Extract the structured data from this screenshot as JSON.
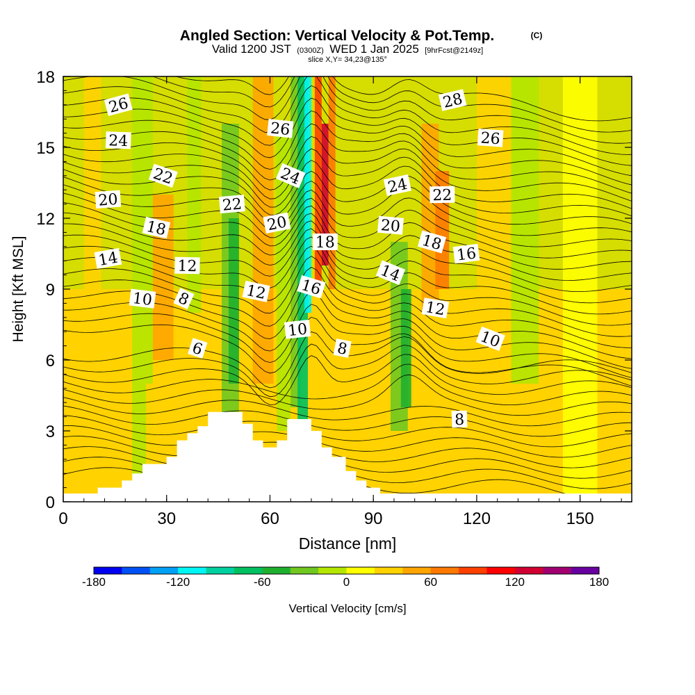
{
  "chart_data": {
    "type": "heatmap",
    "title": "Angled Section: Vertical Velocity & Pot.Temp.",
    "title_suffix": "(C)",
    "subtitle_parts": [
      "Valid 1200 JST",
      "(0300Z)",
      "WED 1 Jan 2025",
      "[9hrFcst@2149z]"
    ],
    "slice_label": "slice X,Y= 34,23@135°",
    "xlabel": "Distance [nm]",
    "ylabel": "Height [Kft MSL]",
    "xlim": [
      0,
      165
    ],
    "ylim": [
      0,
      18
    ],
    "x_ticks": [
      "0",
      "30",
      "60",
      "90",
      "120",
      "150"
    ],
    "y_ticks": [
      "0",
      "3",
      "6",
      "9",
      "12",
      "15",
      "18"
    ],
    "colorbar": {
      "label": "Vertical Velocity [cm/s]",
      "range": [
        -180,
        180
      ],
      "tick_labels": [
        "-180",
        "-120",
        "-60",
        "0",
        "60",
        "120",
        "180"
      ],
      "colors": [
        "#0000f0",
        "#0050f5",
        "#00a0f5",
        "#00f5f5",
        "#00d0a0",
        "#00c060",
        "#20b030",
        "#70c820",
        "#b4e600",
        "#ffff00",
        "#ffd200",
        "#ffa500",
        "#ff7800",
        "#ff4000",
        "#ff0000",
        "#d00030",
        "#a00070",
        "#6800a0"
      ]
    },
    "vertical_velocity_columns": [
      {
        "x": 6,
        "width": 5,
        "z0": 3,
        "z1": 18,
        "value": 20
      },
      {
        "x": 20,
        "width": 6,
        "z0": 0,
        "z1": 18,
        "value": -20
      },
      {
        "x": 26,
        "width": 6,
        "z0": 6,
        "z1": 13,
        "value": 40
      },
      {
        "x": 24,
        "width": 5,
        "z0": 0,
        "z1": 5,
        "value": 20
      },
      {
        "x": 36,
        "width": 4,
        "z0": 8,
        "z1": 18,
        "value": -20
      },
      {
        "x": 46,
        "width": 5,
        "z0": 3.5,
        "z1": 16,
        "value": -40
      },
      {
        "x": 48,
        "width": 3,
        "z0": 5,
        "z1": 12,
        "value": -60
      },
      {
        "x": 55,
        "width": 6,
        "z0": 5,
        "z1": 18,
        "value": 40
      },
      {
        "x": 62,
        "width": 4,
        "z0": 3,
        "z1": 16,
        "value": -20
      },
      {
        "x": 66,
        "width": 3,
        "z0": 4,
        "z1": 18,
        "value": -40
      },
      {
        "x": 68,
        "width": 3,
        "z0": 3.3,
        "z1": 18,
        "value": -80
      },
      {
        "x": 70,
        "width": 2,
        "z0": 8,
        "z1": 18,
        "value": -120
      },
      {
        "x": 73,
        "width": 2,
        "z0": 9,
        "z1": 18,
        "value": 80
      },
      {
        "x": 75,
        "width": 2,
        "z0": 10,
        "z1": 16,
        "value": 120
      },
      {
        "x": 77,
        "width": 2,
        "z0": 9,
        "z1": 18,
        "value": 60
      },
      {
        "x": 95,
        "width": 5,
        "z0": 3,
        "z1": 11,
        "value": -40
      },
      {
        "x": 98,
        "width": 3,
        "z0": 4,
        "z1": 9,
        "value": -60
      },
      {
        "x": 104,
        "width": 5,
        "z0": 8,
        "z1": 16,
        "value": 40
      },
      {
        "x": 108,
        "width": 4,
        "z0": 9,
        "z1": 14,
        "value": 60
      },
      {
        "x": 120,
        "width": 10,
        "z0": 7,
        "z1": 18,
        "value": 20
      },
      {
        "x": 130,
        "width": 8,
        "z0": 5,
        "z1": 18,
        "value": -20
      },
      {
        "x": 145,
        "width": 10,
        "z0": 0,
        "z1": 18,
        "value": 0
      }
    ],
    "terrain": [
      [
        10,
        0.6
      ],
      [
        17,
        0.6
      ],
      [
        17,
        0.9
      ],
      [
        20,
        0.9
      ],
      [
        20,
        1.2
      ],
      [
        23,
        1.2
      ],
      [
        23,
        1.6
      ],
      [
        30,
        1.6
      ],
      [
        30,
        1.9
      ],
      [
        33,
        1.9
      ],
      [
        33,
        2.6
      ],
      [
        36,
        2.6
      ],
      [
        36,
        2.9
      ],
      [
        39,
        2.9
      ],
      [
        39,
        3.2
      ],
      [
        42,
        3.2
      ],
      [
        42,
        3.8
      ],
      [
        52,
        3.8
      ],
      [
        52,
        3.3
      ],
      [
        55,
        3.3
      ],
      [
        55,
        2.6
      ],
      [
        58,
        2.6
      ],
      [
        58,
        2.3
      ],
      [
        62,
        2.3
      ],
      [
        62,
        2.6
      ],
      [
        65,
        2.6
      ],
      [
        65,
        3.5
      ],
      [
        72,
        3.5
      ],
      [
        72,
        3.0
      ],
      [
        75,
        3.0
      ],
      [
        75,
        2.3
      ],
      [
        78,
        2.3
      ],
      [
        78,
        1.9
      ],
      [
        82,
        1.9
      ],
      [
        82,
        1.3
      ],
      [
        85,
        1.3
      ],
      [
        85,
        0.9
      ],
      [
        88,
        0.9
      ],
      [
        88,
        0.6
      ],
      [
        92,
        0.6
      ]
    ],
    "pot_temp_contour_labels": [
      {
        "text": "26",
        "x": 16,
        "z": 16.8
      },
      {
        "text": "24",
        "x": 16,
        "z": 15.3
      },
      {
        "text": "22",
        "x": 29,
        "z": 13.8
      },
      {
        "text": "20",
        "x": 13,
        "z": 12.8
      },
      {
        "text": "18",
        "x": 27,
        "z": 11.6
      },
      {
        "text": "14",
        "x": 13,
        "z": 10.3
      },
      {
        "text": "10",
        "x": 23,
        "z": 8.6
      },
      {
        "text": "8",
        "x": 35,
        "z": 8.6
      },
      {
        "text": "12",
        "x": 36,
        "z": 10.0
      },
      {
        "text": "6",
        "x": 39,
        "z": 6.5
      },
      {
        "text": "22",
        "x": 49,
        "z": 12.6
      },
      {
        "text": "12",
        "x": 56,
        "z": 8.9
      },
      {
        "text": "20",
        "x": 62,
        "z": 11.8
      },
      {
        "text": "26",
        "x": 63,
        "z": 15.8
      },
      {
        "text": "24",
        "x": 66,
        "z": 13.8
      },
      {
        "text": "18",
        "x": 76,
        "z": 11.0
      },
      {
        "text": "16",
        "x": 72,
        "z": 9.1
      },
      {
        "text": "10",
        "x": 68,
        "z": 7.3
      },
      {
        "text": "8",
        "x": 81,
        "z": 6.5
      },
      {
        "text": "24",
        "x": 97,
        "z": 13.4
      },
      {
        "text": "20",
        "x": 95,
        "z": 11.7
      },
      {
        "text": "14",
        "x": 95,
        "z": 9.7
      },
      {
        "text": "22",
        "x": 110,
        "z": 13.0
      },
      {
        "text": "18",
        "x": 107,
        "z": 11.0
      },
      {
        "text": "16",
        "x": 117,
        "z": 10.5
      },
      {
        "text": "12",
        "x": 108,
        "z": 8.2
      },
      {
        "text": "28",
        "x": 113,
        "z": 17.0
      },
      {
        "text": "26",
        "x": 124,
        "z": 15.4
      },
      {
        "text": "10",
        "x": 124,
        "z": 6.9
      },
      {
        "text": "8",
        "x": 115,
        "z": 3.5
      }
    ],
    "legend_placement": "bottom"
  }
}
